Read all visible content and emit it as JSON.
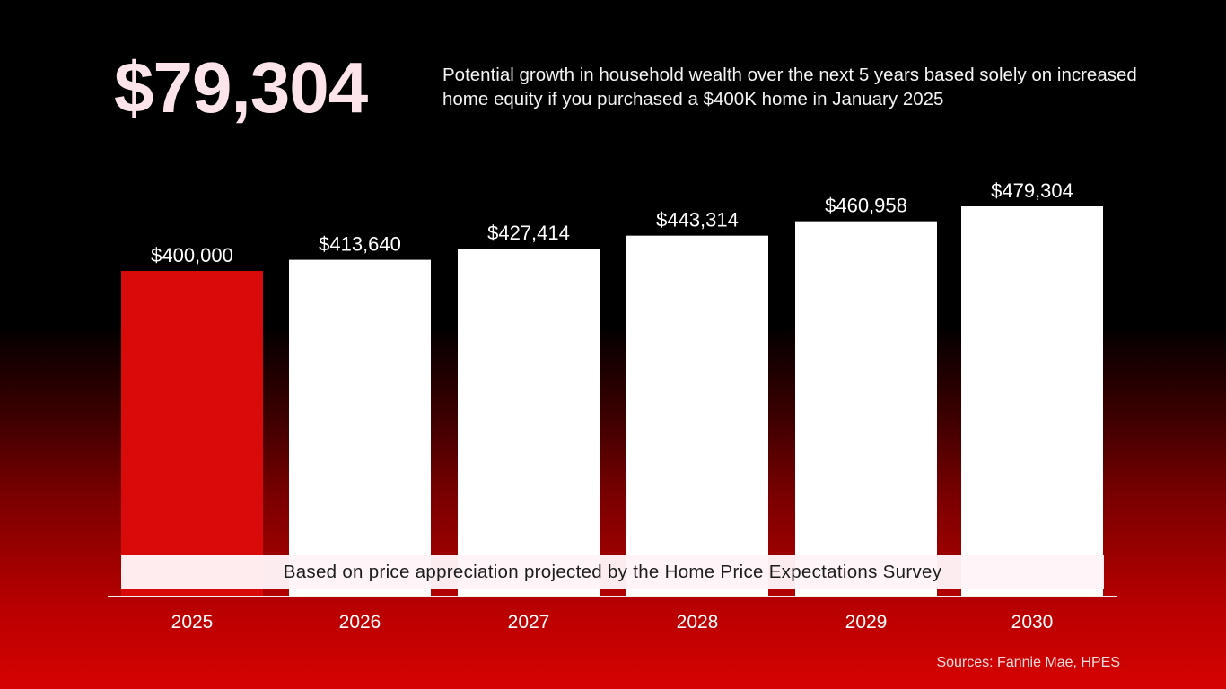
{
  "headline": {
    "value": "$79,304",
    "description": "Potential growth in household wealth over the next 5 years based solely on increased home equity if you purchased a $400K home in January 2025"
  },
  "note": "Based on price appreciation projected by the Home Price Expectations Survey",
  "sources": "Sources: Fannie Mae, HPES",
  "colors": {
    "highlight_bar": "#d80a0a",
    "bar": "#ffffff",
    "headline_text": "#fde4ea"
  },
  "chart_data": {
    "type": "bar",
    "categories": [
      "2025",
      "2026",
      "2027",
      "2028",
      "2029",
      "2030"
    ],
    "values": [
      400000,
      413640,
      427414,
      443314,
      460958,
      479304
    ],
    "data_labels": [
      "$400,000",
      "$413,640",
      "$427,414",
      "$443,314",
      "$460,958",
      "$479,304"
    ],
    "highlight_index": 0,
    "title": "",
    "xlabel": "",
    "ylabel": "",
    "ylim": [
      0,
      479304
    ],
    "grid": false,
    "legend": "none"
  }
}
